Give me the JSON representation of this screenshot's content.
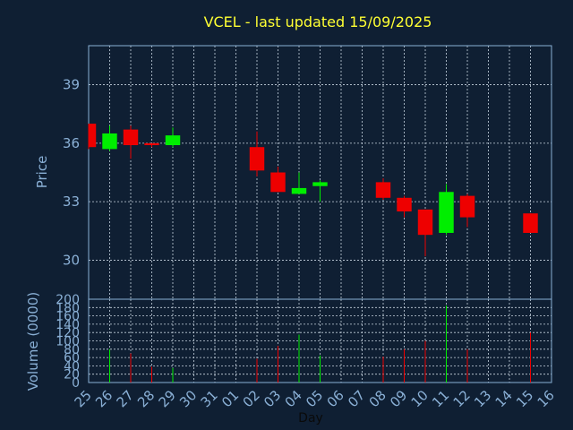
{
  "chart_data": {
    "type": "candlestick",
    "title": "VCEL - last updated 15/09/2025",
    "xlabel": "Day",
    "ylabel": "Price",
    "volume_label": "Volume (0000)",
    "price_ticks": [
      30,
      33,
      36,
      39
    ],
    "ylim": [
      28,
      41
    ],
    "volume_ticks": [
      0,
      20,
      40,
      60,
      80,
      100,
      120,
      140,
      160,
      180,
      200
    ],
    "volume_ylim": [
      0,
      200
    ],
    "x_tick_labels": [
      "25",
      "26",
      "27",
      "28",
      "29",
      "30",
      "31",
      "01",
      "02",
      "03",
      "04",
      "05",
      "06",
      "07",
      "08",
      "09",
      "10",
      "11",
      "12",
      "13",
      "14",
      "15",
      "16"
    ],
    "colors": {
      "up": "#00ee00",
      "down": "#ee0000",
      "title": "#ffff33",
      "axis": "#8ab0d6"
    },
    "candles": [
      {
        "day": "25",
        "open": 37.0,
        "high": 37.0,
        "low": 35.7,
        "close": 35.8,
        "volume": 0
      },
      {
        "day": "26",
        "open": 35.7,
        "high": 36.9,
        "low": 35.6,
        "close": 36.5,
        "volume": 80
      },
      {
        "day": "27",
        "open": 36.7,
        "high": 36.9,
        "low": 35.2,
        "close": 35.9,
        "volume": 70
      },
      {
        "day": "28",
        "open": 36.0,
        "high": 36.0,
        "low": 35.8,
        "close": 35.9,
        "volume": 38
      },
      {
        "day": "29",
        "open": 35.9,
        "high": 36.8,
        "low": 35.8,
        "close": 36.4,
        "volume": 35
      },
      {
        "day": "02",
        "open": 35.8,
        "high": 36.6,
        "low": 34.3,
        "close": 34.6,
        "volume": 57
      },
      {
        "day": "03",
        "open": 34.5,
        "high": 34.8,
        "low": 33.5,
        "close": 33.5,
        "volume": 88
      },
      {
        "day": "04",
        "open": 33.4,
        "high": 34.5,
        "low": 33.4,
        "close": 33.7,
        "volume": 115
      },
      {
        "day": "05",
        "open": 33.8,
        "high": 34.1,
        "low": 33.0,
        "close": 34.0,
        "volume": 65
      },
      {
        "day": "08",
        "open": 34.0,
        "high": 34.2,
        "low": 33.1,
        "close": 33.2,
        "volume": 62
      },
      {
        "day": "09",
        "open": 33.2,
        "high": 33.3,
        "low": 32.2,
        "close": 32.5,
        "volume": 80
      },
      {
        "day": "10",
        "open": 32.6,
        "high": 32.6,
        "low": 30.2,
        "close": 31.3,
        "volume": 100
      },
      {
        "day": "11",
        "open": 31.4,
        "high": 33.9,
        "low": 31.3,
        "close": 33.5,
        "volume": 185
      },
      {
        "day": "12",
        "open": 33.3,
        "high": 33.4,
        "low": 31.7,
        "close": 32.2,
        "volume": 80
      },
      {
        "day": "15",
        "open": 32.4,
        "high": 32.4,
        "low": 31.4,
        "close": 31.4,
        "volume": 120
      }
    ]
  }
}
